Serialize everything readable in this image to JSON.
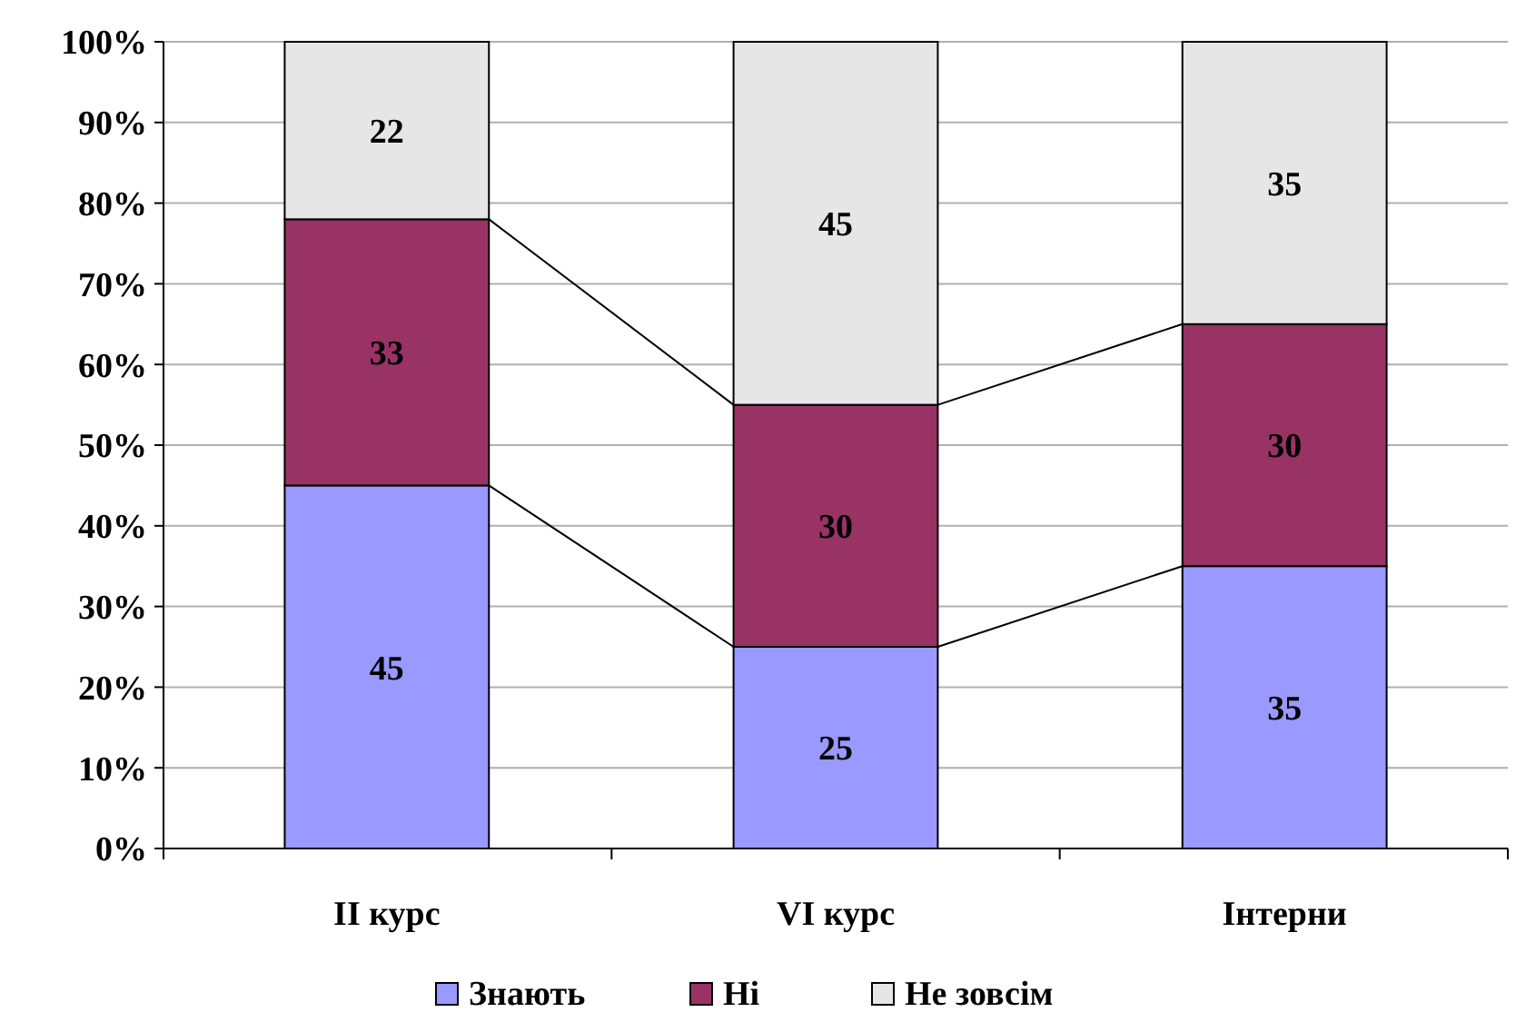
{
  "chart_data": {
    "type": "bar",
    "stacked": true,
    "categories": [
      "II курс",
      "VI курс",
      "Інтерни"
    ],
    "series": [
      {
        "name": "Знають",
        "color": "#9999ff",
        "values": [
          45,
          25,
          35
        ]
      },
      {
        "name": "Ні",
        "color": "#993366",
        "values": [
          33,
          30,
          30
        ]
      },
      {
        "name": "Не зовсім",
        "color": "#e6e6e6",
        "values": [
          22,
          45,
          35
        ]
      }
    ],
    "ylim": [
      0,
      100
    ],
    "yticks": [
      {
        "value": 0,
        "label": "0%"
      },
      {
        "value": 10,
        "label": "10%"
      },
      {
        "value": 20,
        "label": "20%"
      },
      {
        "value": 30,
        "label": "30%"
      },
      {
        "value": 40,
        "label": "40%"
      },
      {
        "value": 50,
        "label": "50%"
      },
      {
        "value": 60,
        "label": "60%"
      },
      {
        "value": 70,
        "label": "70%"
      },
      {
        "value": 80,
        "label": "80%"
      },
      {
        "value": 90,
        "label": "90%"
      },
      {
        "value": 100,
        "label": "100%"
      }
    ],
    "grid": "y",
    "data_labels": true,
    "legend": "bottom"
  }
}
